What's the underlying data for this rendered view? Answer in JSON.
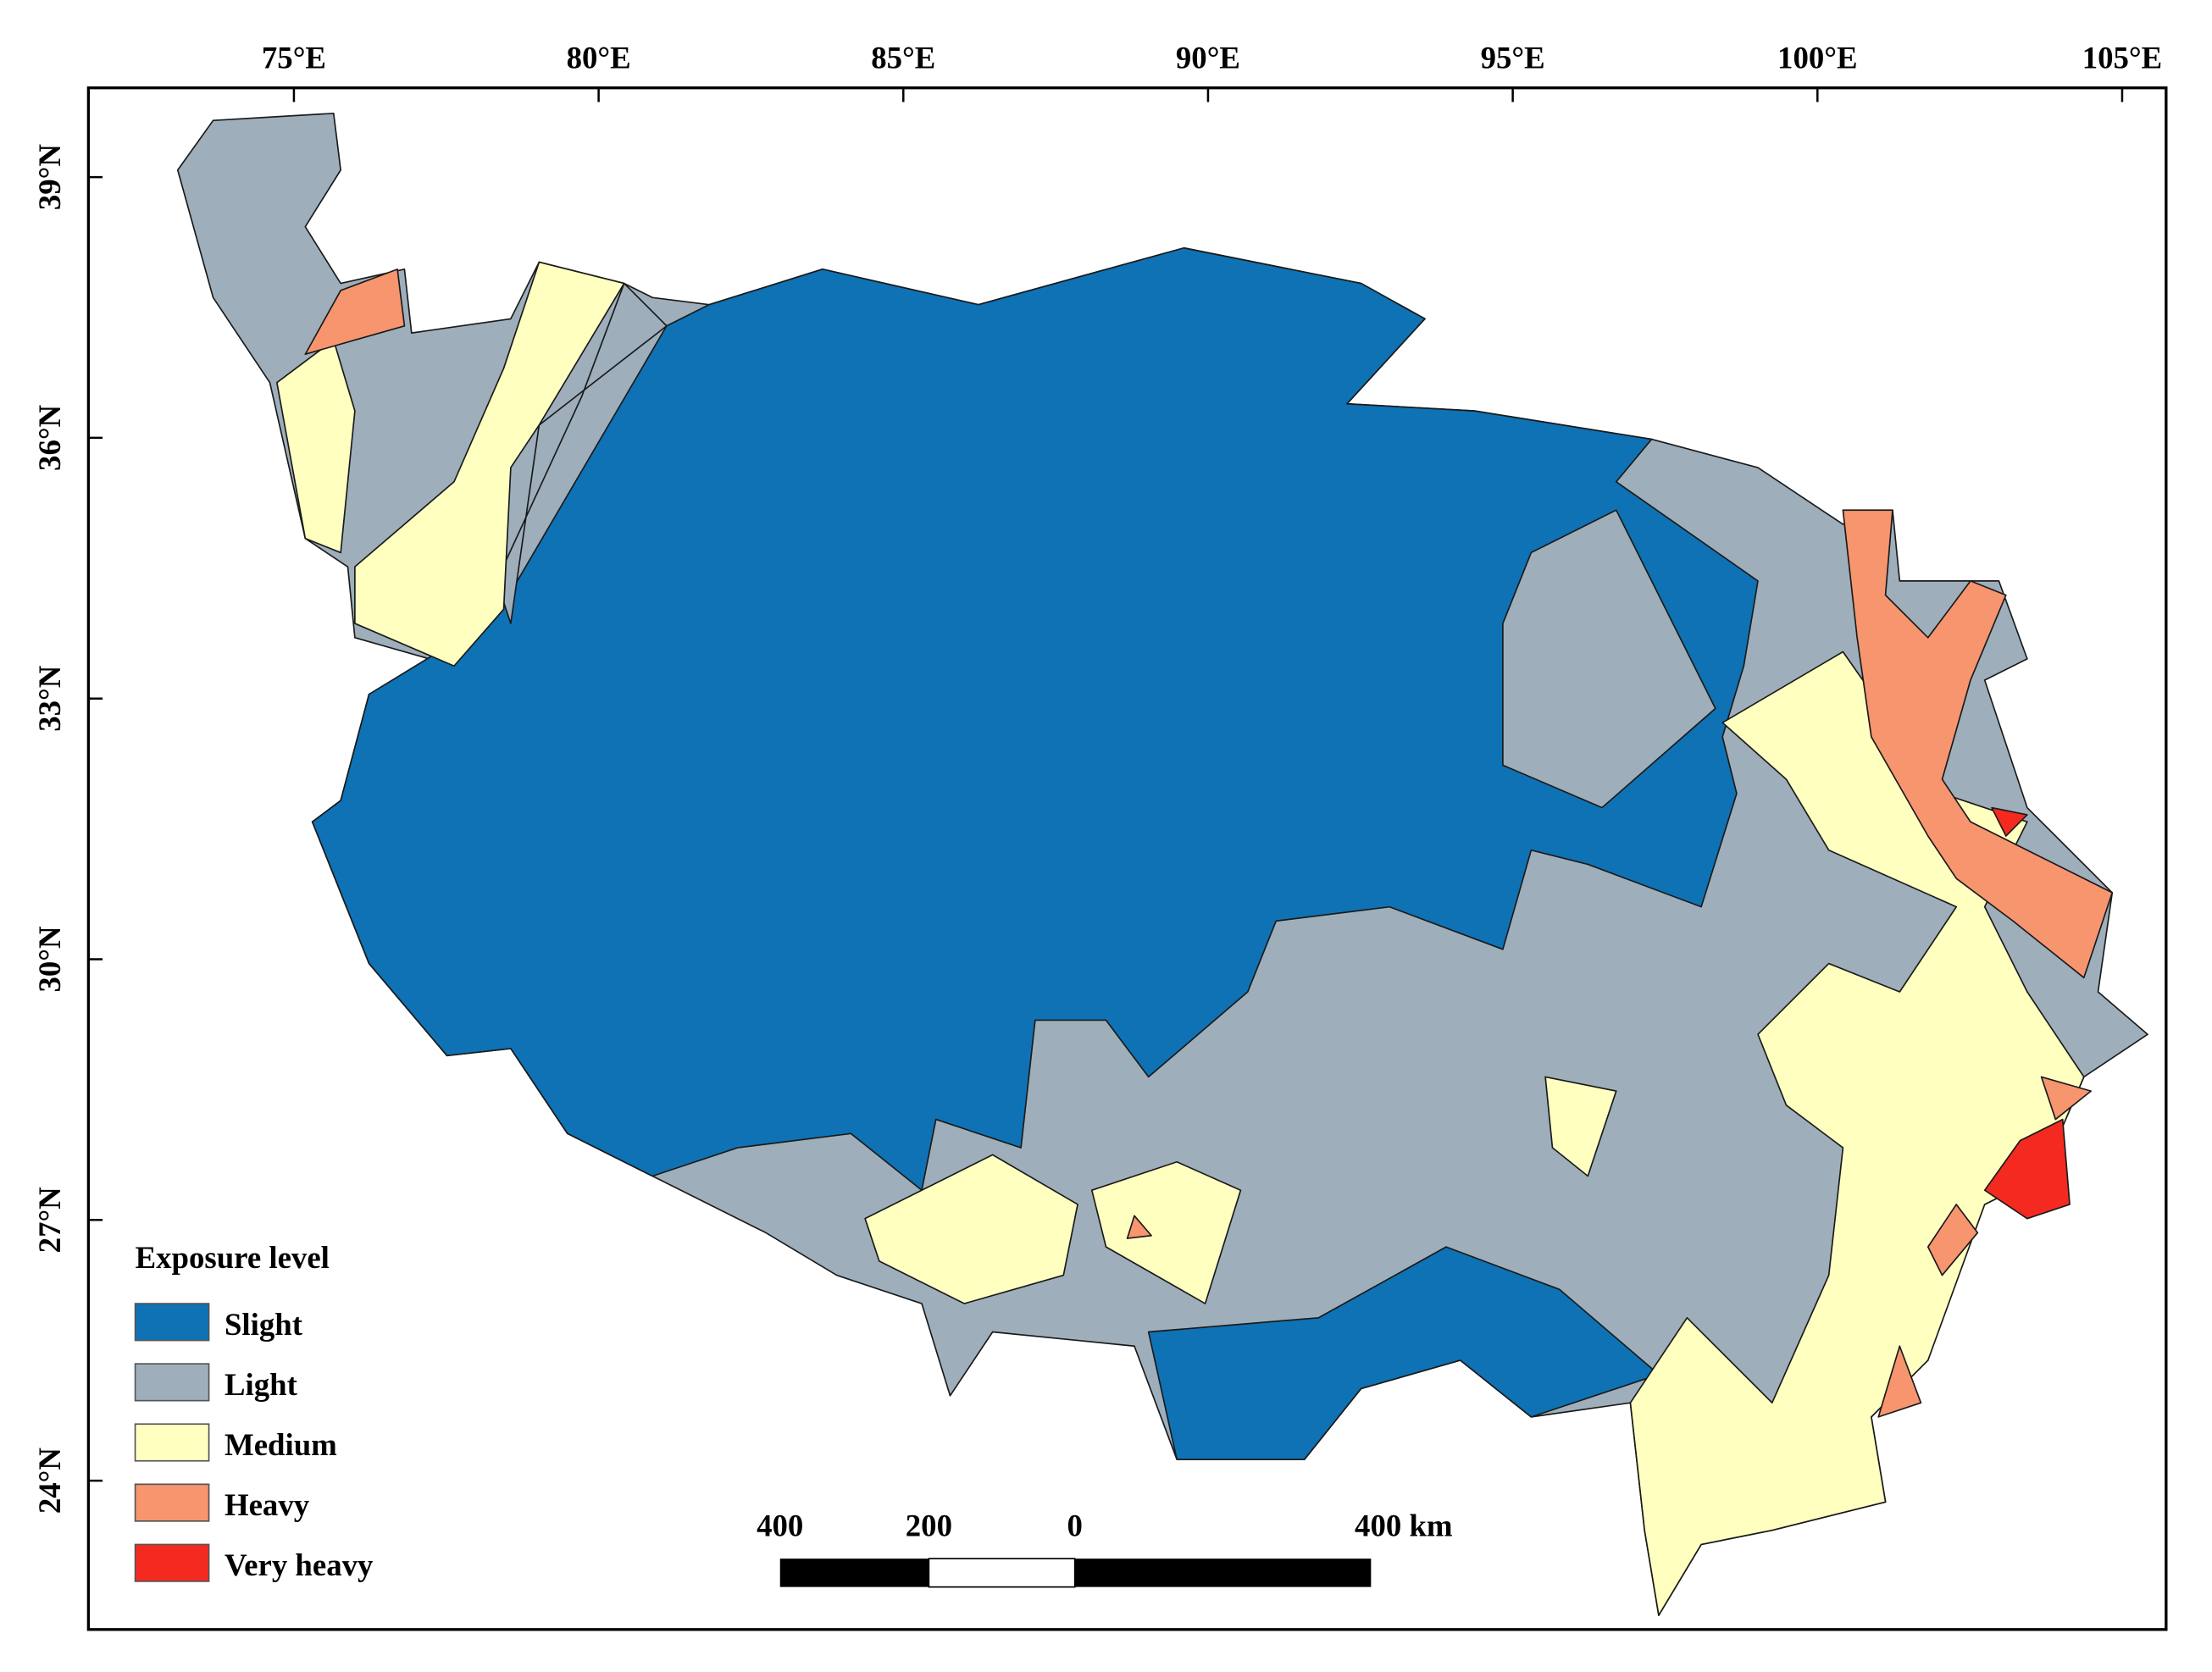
{
  "map": {
    "lon_ticks": [
      {
        "value": 75,
        "label": "75°E"
      },
      {
        "value": 80,
        "label": "80°E"
      },
      {
        "value": 85,
        "label": "85°E"
      },
      {
        "value": 90,
        "label": "90°E"
      },
      {
        "value": 95,
        "label": "95°E"
      },
      {
        "value": 100,
        "label": "100°E"
      },
      {
        "value": 105,
        "label": "105°E"
      }
    ],
    "lat_ticks": [
      {
        "value": 39,
        "label": "39°N"
      },
      {
        "value": 36,
        "label": "36°N"
      },
      {
        "value": 33,
        "label": "33°N"
      },
      {
        "value": 30,
        "label": "30°N"
      },
      {
        "value": 27,
        "label": "27°N"
      },
      {
        "value": 24,
        "label": "24°N"
      }
    ],
    "legend": {
      "title": "Exposure level",
      "items": [
        {
          "label": "Slight",
          "color": "#0e72b5"
        },
        {
          "label": "Light",
          "color": "#9eafbb"
        },
        {
          "label": "Medium",
          "color": "#ffffc0"
        },
        {
          "label": "Heavy",
          "color": "#f7956f"
        },
        {
          "label": "Very heavy",
          "color": "#f42a20"
        }
      ]
    },
    "scale_bar": {
      "labels": [
        "400",
        "200",
        "0",
        "400 km"
      ]
    }
  }
}
